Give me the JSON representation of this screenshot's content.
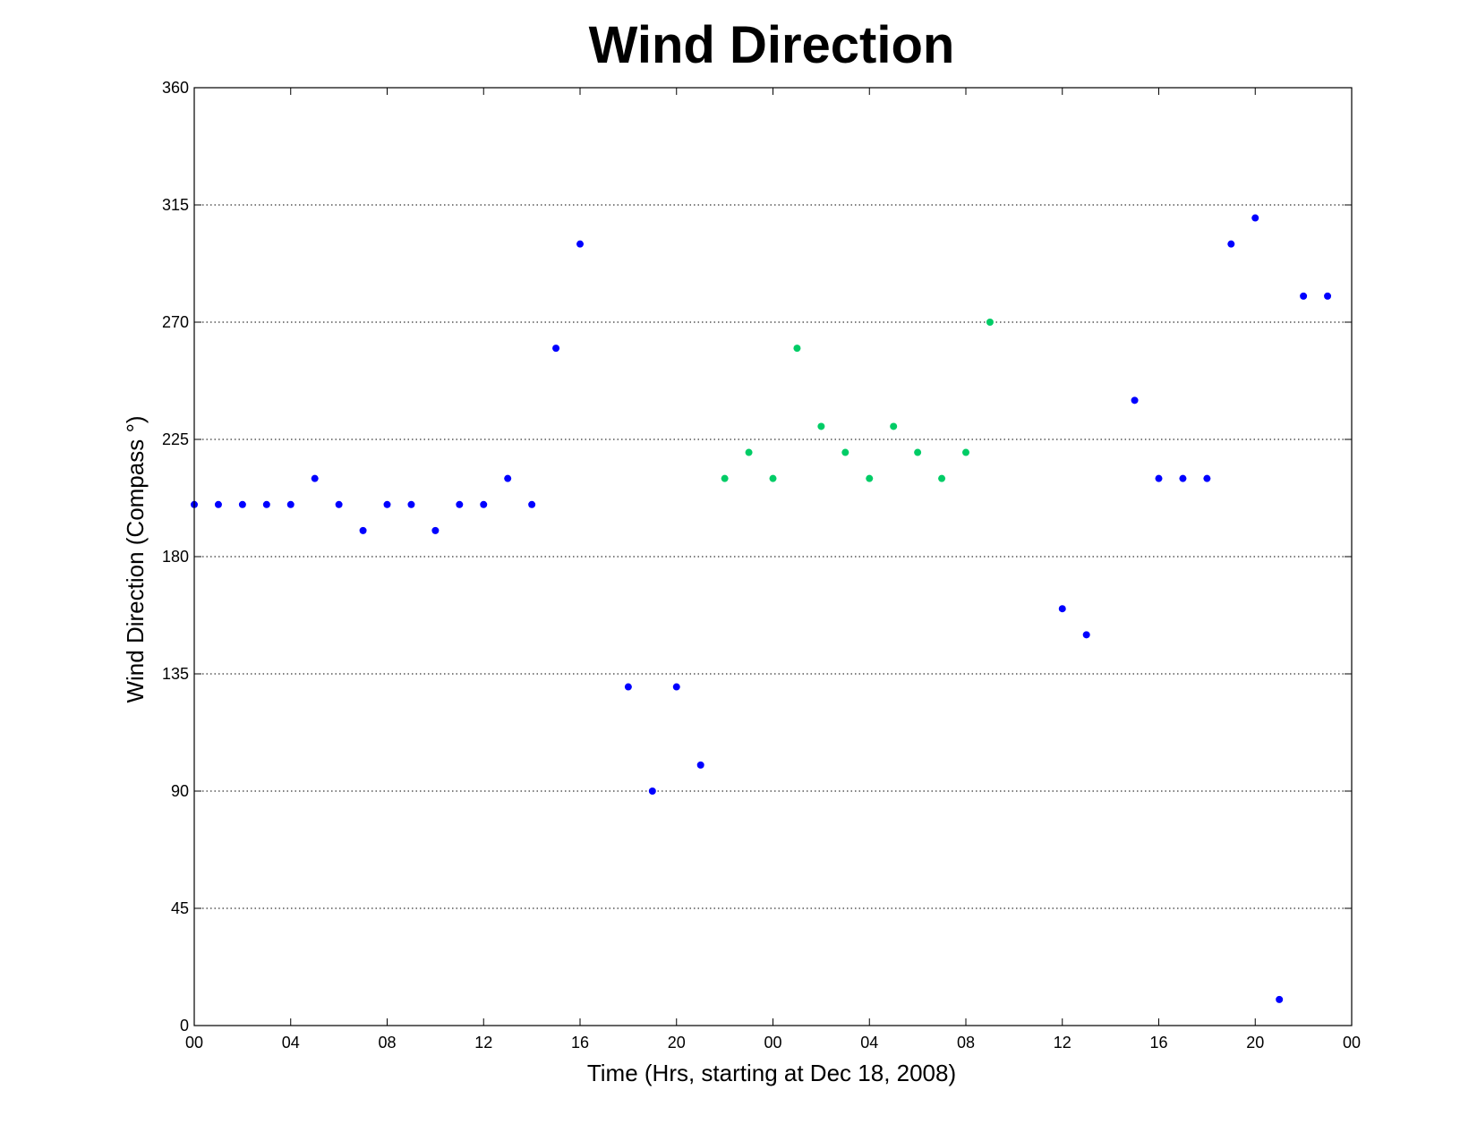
{
  "chart_data": {
    "type": "scatter",
    "title": "Wind Direction",
    "xlabel": "Time (Hrs, starting at Dec 18, 2008)",
    "ylabel": "Wind Direction (Compass  °)",
    "ylim": [
      0,
      360
    ],
    "yticks": [
      0,
      45,
      90,
      135,
      180,
      225,
      270,
      315,
      360
    ],
    "xlim": [
      "2008-12-18 00:00",
      "2008-12-20 00:00"
    ],
    "xticks": [
      {
        "at": "2008-12-18 00:00",
        "label": "00"
      },
      {
        "at": "2008-12-18 04:00",
        "label": "04"
      },
      {
        "at": "2008-12-18 08:00",
        "label": "08"
      },
      {
        "at": "2008-12-18 12:00",
        "label": "12"
      },
      {
        "at": "2008-12-18 16:00",
        "label": "16"
      },
      {
        "at": "2008-12-18 20:00",
        "label": "20"
      },
      {
        "at": "2008-12-19 00:00",
        "label": "00"
      },
      {
        "at": "2008-12-19 04:00",
        "label": "04"
      },
      {
        "at": "2008-12-19 08:00",
        "label": "08"
      },
      {
        "at": "2008-12-19 12:00",
        "label": "12"
      },
      {
        "at": "2008-12-19 16:00",
        "label": "16"
      },
      {
        "at": "2008-12-19 20:00",
        "label": "20"
      },
      {
        "at": "2008-12-20 00:00",
        "label": "00"
      }
    ],
    "grid": "horizontal",
    "series": [
      {
        "color": "#0000ff",
        "points": [
          {
            "x": "2008-12-18 00:00",
            "y": 200
          },
          {
            "x": "2008-12-18 01:00",
            "y": 200
          },
          {
            "x": "2008-12-18 02:00",
            "y": 200
          },
          {
            "x": "2008-12-18 03:00",
            "y": 200
          },
          {
            "x": "2008-12-18 04:00",
            "y": 200
          },
          {
            "x": "2008-12-18 05:00",
            "y": 210
          },
          {
            "x": "2008-12-18 06:00",
            "y": 200
          },
          {
            "x": "2008-12-18 07:00",
            "y": 190
          },
          {
            "x": "2008-12-18 08:00",
            "y": 200
          },
          {
            "x": "2008-12-18 09:00",
            "y": 200
          },
          {
            "x": "2008-12-18 10:00",
            "y": 190
          },
          {
            "x": "2008-12-18 11:00",
            "y": 200
          },
          {
            "x": "2008-12-18 12:00",
            "y": 200
          },
          {
            "x": "2008-12-18 13:00",
            "y": 210
          },
          {
            "x": "2008-12-18 14:00",
            "y": 200
          },
          {
            "x": "2008-12-18 15:00",
            "y": 260
          },
          {
            "x": "2008-12-18 16:00",
            "y": 300
          },
          {
            "x": "2008-12-18 18:00",
            "y": 130
          },
          {
            "x": "2008-12-18 19:00",
            "y": 90
          },
          {
            "x": "2008-12-18 20:00",
            "y": 130
          },
          {
            "x": "2008-12-18 21:00",
            "y": 100
          },
          {
            "x": "2008-12-19 12:00",
            "y": 160
          },
          {
            "x": "2008-12-19 13:00",
            "y": 150
          },
          {
            "x": "2008-12-19 15:00",
            "y": 240
          },
          {
            "x": "2008-12-19 16:00",
            "y": 210
          },
          {
            "x": "2008-12-19 17:00",
            "y": 210
          },
          {
            "x": "2008-12-19 18:00",
            "y": 210
          },
          {
            "x": "2008-12-19 19:00",
            "y": 300
          },
          {
            "x": "2008-12-19 20:00",
            "y": 310
          },
          {
            "x": "2008-12-19 21:00",
            "y": 10
          },
          {
            "x": "2008-12-19 22:00",
            "y": 280
          },
          {
            "x": "2008-12-19 23:00",
            "y": 280
          }
        ]
      },
      {
        "color": "#00cc66",
        "points": [
          {
            "x": "2008-12-18 22:00",
            "y": 210
          },
          {
            "x": "2008-12-18 23:00",
            "y": 220
          },
          {
            "x": "2008-12-19 00:00",
            "y": 210
          },
          {
            "x": "2008-12-19 01:00",
            "y": 260
          },
          {
            "x": "2008-12-19 02:00",
            "y": 230
          },
          {
            "x": "2008-12-19 03:00",
            "y": 220
          },
          {
            "x": "2008-12-19 04:00",
            "y": 210
          },
          {
            "x": "2008-12-19 05:00",
            "y": 230
          },
          {
            "x": "2008-12-19 06:00",
            "y": 220
          },
          {
            "x": "2008-12-19 07:00",
            "y": 210
          },
          {
            "x": "2008-12-19 08:00",
            "y": 220
          },
          {
            "x": "2008-12-19 09:00",
            "y": 270
          }
        ]
      }
    ]
  }
}
